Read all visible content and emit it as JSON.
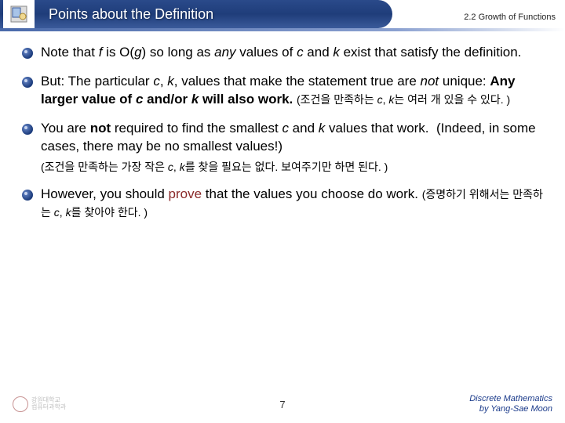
{
  "header": {
    "title": "Points about the Definition",
    "section": "2.2 Growth of Functions"
  },
  "bullets": [
    {
      "html": "Note that <span class='it'>f</span> is O(<span class='it'>g</span>) so long as <span class='it'>any</span> values of <span class='it'>c</span> and <span class='it'>k</span> exist that satisfy the definition."
    },
    {
      "html": "But: The particular <span class='it'>c</span>, <span class='it'>k</span>, values that make the statement true are <span class='it'>not</span> unique: <span class='b'>Any larger value of <span class='it'>c</span> and/or <span class='it'>k</span> will also work.</span> <span class='kr'>(조건을 만족하는 <span class='it'>c</span>, <span class='it'>k</span>는 여러 개 있을 수 있다. )</span>"
    },
    {
      "html": "You are <span class='b'>not</span> required to find the smallest <span class='it'>c</span> and <span class='it'>k</span> values that work.&nbsp; (Indeed, in some cases, there may be no smallest values!)"
    },
    {
      "sub": "(조건을 만족하는 가장 작은 <i>c</i>, <i>k</i>를 찾을 필요는 없다. 보여주기만 하면 된다. )"
    },
    {
      "html": "However, you should <span class='prove'>prove</span> that the values you choose do work. <span class='kr'>(증명하기 위해서는 만족하는 <span class='it'>c</span>, <span class='it'>k</span>를 찾아야 한다. )</span>"
    }
  ],
  "footer": {
    "page": "7",
    "course_line1": "Discrete Mathematics",
    "course_line2": "by Yang-Sae Moon"
  },
  "colors": {
    "header_bg_start": "#2a4a8a",
    "header_bg_end": "#3a5a9a",
    "prove_color": "#8a2a2a",
    "footer_text": "#1a3a8a"
  }
}
